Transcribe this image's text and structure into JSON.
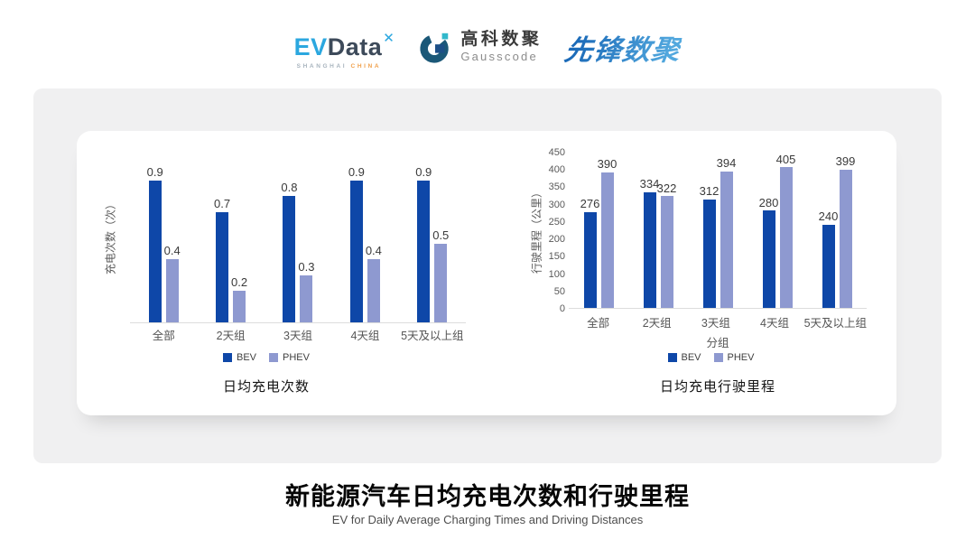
{
  "header": {
    "evdata": {
      "brand_ev": "EV",
      "brand_data": "Data",
      "star": "✕",
      "location_city": "SHANGHAI",
      "location_country": "CHINA"
    },
    "gausscode": {
      "name_cn": "高科数聚",
      "name_en": "Gausscode"
    },
    "pioneer": {
      "name_cn": "先锋数聚"
    }
  },
  "chart_data": [
    {
      "type": "bar",
      "title": "日均充电次数",
      "ylabel": "充电次数（次）",
      "xlabel": "",
      "categories": [
        "全部",
        "2天组",
        "3天组",
        "4天组",
        "5天及以上组"
      ],
      "series": [
        {
          "name": "BEV",
          "values": [
            0.9,
            0.7,
            0.8,
            0.9,
            0.9
          ]
        },
        {
          "name": "PHEV",
          "values": [
            0.4,
            0.2,
            0.3,
            0.4,
            0.5
          ]
        }
      ],
      "ylim": [
        0,
        1
      ],
      "y_axis_labels_shown": false,
      "legend_position": "bottom",
      "colors": {
        "BEV": "#0E47A8",
        "PHEV": "#8E99D0"
      }
    },
    {
      "type": "bar",
      "title": "日均充电行驶里程",
      "ylabel": "行驶里程（公里）",
      "xlabel": "分组",
      "categories": [
        "全部",
        "2天组",
        "3天组",
        "4天组",
        "5天及以上组"
      ],
      "series": [
        {
          "name": "BEV",
          "values": [
            276,
            334,
            312,
            280,
            240
          ]
        },
        {
          "name": "PHEV",
          "values": [
            390,
            322,
            394,
            405,
            399
          ]
        }
      ],
      "ylim": [
        0,
        450
      ],
      "yticks": [
        0,
        50,
        100,
        150,
        200,
        250,
        300,
        350,
        400,
        450
      ],
      "legend_position": "bottom",
      "colors": {
        "BEV": "#0E47A8",
        "PHEV": "#8E99D0"
      }
    }
  ],
  "footer": {
    "title": "新能源汽车日均充电次数和行驶里程",
    "subtitle": "EV for Daily Average Charging Times and Driving Distances"
  }
}
